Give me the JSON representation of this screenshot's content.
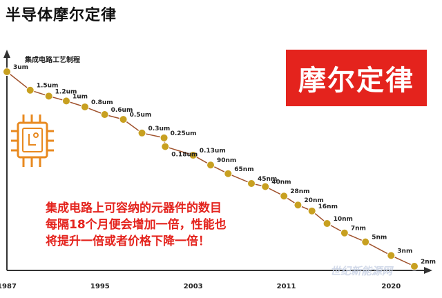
{
  "page": {
    "title": "半导体摩尔定律",
    "badge": "摩尔定律",
    "description": [
      "集成电路上可容纳的元器件的数目",
      "每隔18个月便会增加一倍，性能也",
      "将提升一倍或者价格下降一倍！"
    ],
    "watermark": "世纪新能源网"
  },
  "colors": {
    "line": "#a0522d",
    "point": "#c8a020",
    "accent": "#e4231d",
    "icon": "#e8891f"
  },
  "icons": [
    "chip-icon"
  ],
  "chart_data": {
    "type": "line",
    "ylabel": "集成电路工艺制程",
    "x_ticks": [
      "1987",
      "1995",
      "2003",
      "2011",
      "2020"
    ],
    "xlim": [
      1987,
      2022
    ],
    "log_scale_y": true,
    "grid": false,
    "series": [
      {
        "points": [
          {
            "label": "3um",
            "x": 1987
          },
          {
            "label": "1.5um",
            "x": 1989
          },
          {
            "label": "1.2um",
            "x": 1990.6
          },
          {
            "label": "1um",
            "x": 1992.1
          },
          {
            "label": "0.8um",
            "x": 1993.7
          },
          {
            "label": "0.6um",
            "x": 1995.4
          },
          {
            "label": "0.5um",
            "x": 1997
          },
          {
            "label": "0.3um",
            "x": 1998.6
          },
          {
            "label": "0.25um",
            "x": 2000.5
          },
          {
            "label": "0.18um",
            "x": 2000.6
          },
          {
            "label": "0.13um",
            "x": 2003
          },
          {
            "label": "90nm",
            "x": 2004.5
          },
          {
            "label": "65nm",
            "x": 2006
          },
          {
            "label": "45nm",
            "x": 2008
          },
          {
            "label": "40nm",
            "x": 2009.2
          },
          {
            "label": "28nm",
            "x": 2010.8
          },
          {
            "label": "20nm",
            "x": 2012
          },
          {
            "label": "16nm",
            "x": 2013.2
          },
          {
            "label": "10nm",
            "x": 2014.5
          },
          {
            "label": "7nm",
            "x": 2016
          },
          {
            "label": "5nm",
            "x": 2017.8
          },
          {
            "label": "3nm",
            "x": 2020
          },
          {
            "label": "2nm",
            "x": 2022
          }
        ]
      }
    ]
  }
}
